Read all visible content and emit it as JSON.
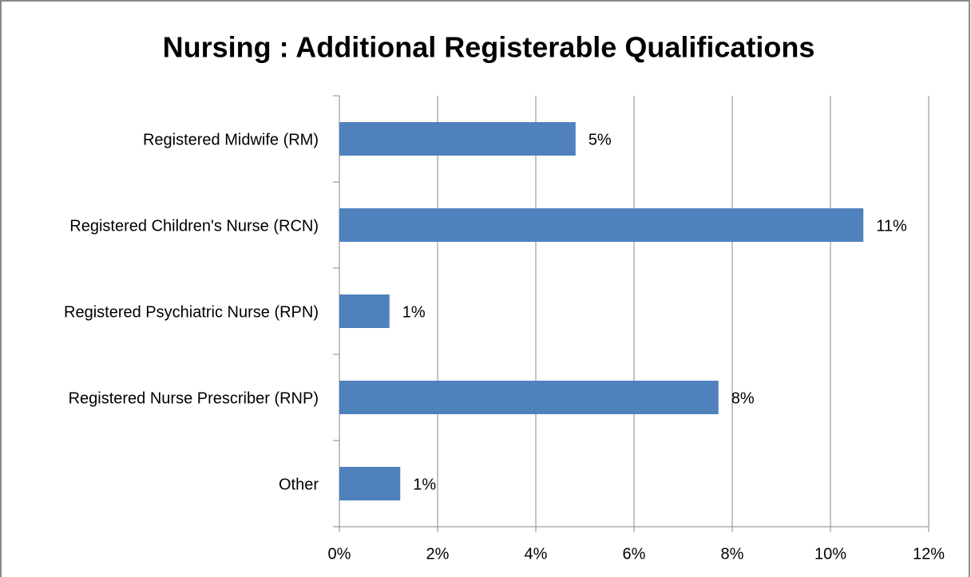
{
  "chart_data": {
    "type": "bar",
    "orientation": "horizontal",
    "title": "Nursing : Additional Registerable Qualifications",
    "categories": [
      "Registered Midwife (RM)",
      "Registered Children's Nurse (RCN)",
      "Registered Psychiatric Nurse (RPN)",
      "Registered Nurse Prescriber (RNP)",
      "Other"
    ],
    "values": [
      4.81,
      10.67,
      1.02,
      7.72,
      1.24
    ],
    "value_labels": [
      "5%",
      "11%",
      "1%",
      "8%",
      "1%"
    ],
    "color": "#4f81bd",
    "xlim": [
      0,
      12
    ],
    "xticks": [
      {
        "value": 0,
        "label": "0%"
      },
      {
        "value": 2,
        "label": "2%"
      },
      {
        "value": 4,
        "label": "4%"
      },
      {
        "value": 6,
        "label": "6%"
      },
      {
        "value": 8,
        "label": "8%"
      },
      {
        "value": 10,
        "label": "10%"
      },
      {
        "value": 12,
        "label": "12%"
      }
    ],
    "grid": true
  }
}
